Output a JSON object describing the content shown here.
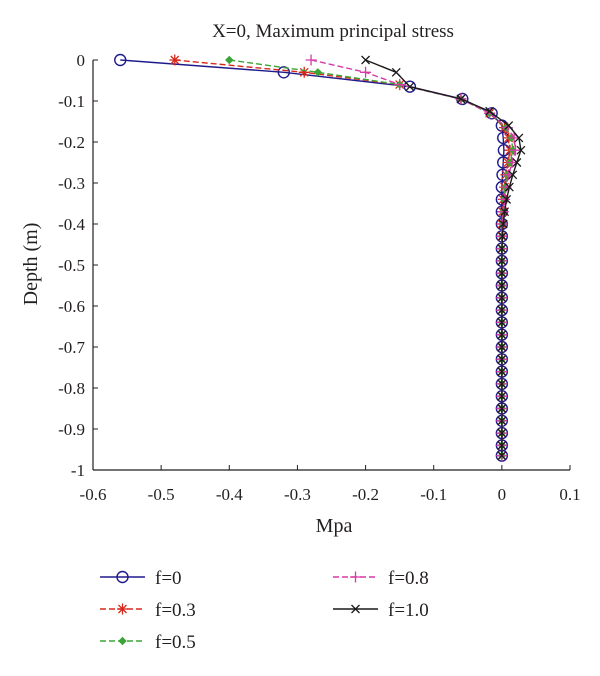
{
  "chart_data": {
    "type": "line",
    "title": "X=0, Maximum principal stress",
    "xlabel": "Mpa",
    "ylabel": "Depth (m)",
    "xlim": [
      -0.6,
      0.1
    ],
    "ylim": [
      -1,
      0
    ],
    "x_ticks": [
      "-0.6",
      "-0.5",
      "-0.4",
      "-0.3",
      "-0.2",
      "-0.1",
      "0",
      "0.1"
    ],
    "y_ticks": [
      "0",
      "-0.1",
      "-0.2",
      "-0.3",
      "-0.4",
      "-0.5",
      "-0.6",
      "-0.7",
      "-0.8",
      "-0.9",
      "-1"
    ],
    "grid": false,
    "legend_position": "bottom",
    "series": [
      {
        "name": "f=0",
        "color": "#1f1a8c",
        "dash": "solid",
        "marker": "circle",
        "points": [
          [
            -0.56,
            0.0
          ],
          [
            -0.32,
            -0.03
          ],
          [
            -0.135,
            -0.065
          ],
          [
            -0.058,
            -0.095
          ],
          [
            -0.015,
            -0.13
          ],
          [
            0.0,
            -0.16
          ],
          [
            0.002,
            -0.19
          ],
          [
            0.003,
            -0.22
          ],
          [
            0.002,
            -0.25
          ],
          [
            0.001,
            -0.28
          ],
          [
            0.0,
            -0.31
          ],
          [
            0.0,
            -0.34
          ],
          [
            0.0,
            -0.37
          ],
          [
            0.0,
            -0.4
          ],
          [
            0.0,
            -0.43
          ],
          [
            0.0,
            -0.46
          ],
          [
            0.0,
            -0.49
          ],
          [
            0.0,
            -0.52
          ],
          [
            0.0,
            -0.55
          ],
          [
            0.0,
            -0.58
          ],
          [
            0.0,
            -0.61
          ],
          [
            0.0,
            -0.64
          ],
          [
            0.0,
            -0.67
          ],
          [
            0.0,
            -0.7
          ],
          [
            0.0,
            -0.73
          ],
          [
            0.0,
            -0.76
          ],
          [
            0.0,
            -0.79
          ],
          [
            0.0,
            -0.82
          ],
          [
            0.0,
            -0.85
          ],
          [
            0.0,
            -0.88
          ],
          [
            0.0,
            -0.91
          ],
          [
            0.0,
            -0.94
          ],
          [
            0.0,
            -0.965
          ]
        ]
      },
      {
        "name": "f=0.3",
        "color": "#d8281c",
        "dash": "dashed",
        "marker": "asterisk",
        "points": [
          [
            -0.48,
            0.0
          ],
          [
            -0.29,
            -0.03
          ],
          [
            -0.15,
            -0.06
          ],
          [
            -0.06,
            -0.095
          ],
          [
            -0.018,
            -0.13
          ],
          [
            0.004,
            -0.165
          ],
          [
            0.01,
            -0.19
          ],
          [
            0.012,
            -0.22
          ],
          [
            0.009,
            -0.25
          ],
          [
            0.006,
            -0.28
          ],
          [
            0.004,
            -0.31
          ],
          [
            0.002,
            -0.34
          ],
          [
            0.001,
            -0.37
          ],
          [
            0.0,
            -0.4
          ],
          [
            0.0,
            -0.43
          ],
          [
            0.0,
            -0.46
          ],
          [
            0.0,
            -0.49
          ],
          [
            0.0,
            -0.52
          ],
          [
            0.0,
            -0.55
          ],
          [
            0.0,
            -0.58
          ],
          [
            0.0,
            -0.61
          ],
          [
            0.0,
            -0.64
          ],
          [
            0.0,
            -0.67
          ],
          [
            0.0,
            -0.7
          ],
          [
            0.0,
            -0.73
          ],
          [
            0.0,
            -0.76
          ],
          [
            0.0,
            -0.79
          ],
          [
            0.0,
            -0.82
          ],
          [
            0.0,
            -0.85
          ],
          [
            0.0,
            -0.88
          ],
          [
            0.0,
            -0.91
          ],
          [
            0.0,
            -0.94
          ],
          [
            0.0,
            -0.965
          ]
        ]
      },
      {
        "name": "f=0.5",
        "color": "#3aa535",
        "dash": "dashed",
        "marker": "diamond",
        "points": [
          [
            -0.4,
            0.0
          ],
          [
            -0.27,
            -0.03
          ],
          [
            -0.15,
            -0.06
          ],
          [
            -0.06,
            -0.095
          ],
          [
            -0.018,
            -0.13
          ],
          [
            0.006,
            -0.165
          ],
          [
            0.014,
            -0.19
          ],
          [
            0.016,
            -0.22
          ],
          [
            0.012,
            -0.25
          ],
          [
            0.008,
            -0.28
          ],
          [
            0.005,
            -0.31
          ],
          [
            0.003,
            -0.34
          ],
          [
            0.002,
            -0.37
          ],
          [
            0.001,
            -0.4
          ],
          [
            0.0,
            -0.43
          ],
          [
            0.0,
            -0.46
          ],
          [
            0.0,
            -0.49
          ],
          [
            0.0,
            -0.52
          ],
          [
            0.0,
            -0.55
          ],
          [
            0.0,
            -0.58
          ],
          [
            0.0,
            -0.61
          ],
          [
            0.0,
            -0.64
          ],
          [
            0.0,
            -0.67
          ],
          [
            0.0,
            -0.7
          ],
          [
            0.0,
            -0.73
          ],
          [
            0.0,
            -0.76
          ],
          [
            0.0,
            -0.79
          ],
          [
            0.0,
            -0.82
          ],
          [
            0.0,
            -0.85
          ],
          [
            0.0,
            -0.88
          ],
          [
            0.0,
            -0.91
          ],
          [
            0.0,
            -0.94
          ],
          [
            0.0,
            -0.965
          ]
        ]
      },
      {
        "name": "f=0.8",
        "color": "#d63aa6",
        "dash": "dashed",
        "marker": "plus",
        "points": [
          [
            -0.28,
            0.0
          ],
          [
            -0.2,
            -0.03
          ],
          [
            -0.15,
            -0.06
          ],
          [
            -0.06,
            -0.095
          ],
          [
            -0.018,
            -0.13
          ],
          [
            0.008,
            -0.165
          ],
          [
            0.018,
            -0.19
          ],
          [
            0.02,
            -0.22
          ],
          [
            0.015,
            -0.25
          ],
          [
            0.01,
            -0.28
          ],
          [
            0.006,
            -0.31
          ],
          [
            0.004,
            -0.34
          ],
          [
            0.002,
            -0.37
          ],
          [
            0.001,
            -0.4
          ],
          [
            0.0,
            -0.43
          ],
          [
            0.0,
            -0.46
          ],
          [
            0.0,
            -0.49
          ],
          [
            0.0,
            -0.52
          ],
          [
            0.0,
            -0.55
          ],
          [
            0.0,
            -0.58
          ],
          [
            0.0,
            -0.61
          ],
          [
            0.0,
            -0.64
          ],
          [
            0.0,
            -0.67
          ],
          [
            0.0,
            -0.7
          ],
          [
            0.0,
            -0.73
          ],
          [
            0.0,
            -0.76
          ],
          [
            0.0,
            -0.79
          ],
          [
            0.0,
            -0.82
          ],
          [
            0.0,
            -0.85
          ],
          [
            0.0,
            -0.88
          ],
          [
            0.0,
            -0.91
          ],
          [
            0.0,
            -0.94
          ],
          [
            0.0,
            -0.965
          ]
        ]
      },
      {
        "name": "f=1.0",
        "color": "#1a1a1a",
        "dash": "solid",
        "marker": "x",
        "points": [
          [
            -0.2,
            0.0
          ],
          [
            -0.155,
            -0.03
          ],
          [
            -0.135,
            -0.065
          ],
          [
            -0.06,
            -0.095
          ],
          [
            -0.018,
            -0.125
          ],
          [
            0.01,
            -0.16
          ],
          [
            0.025,
            -0.19
          ],
          [
            0.028,
            -0.22
          ],
          [
            0.022,
            -0.25
          ],
          [
            0.016,
            -0.28
          ],
          [
            0.011,
            -0.31
          ],
          [
            0.007,
            -0.34
          ],
          [
            0.004,
            -0.37
          ],
          [
            0.002,
            -0.4
          ],
          [
            0.001,
            -0.43
          ],
          [
            0.0,
            -0.46
          ],
          [
            0.0,
            -0.49
          ],
          [
            0.0,
            -0.52
          ],
          [
            0.0,
            -0.55
          ],
          [
            0.0,
            -0.58
          ],
          [
            0.0,
            -0.61
          ],
          [
            0.0,
            -0.64
          ],
          [
            0.0,
            -0.67
          ],
          [
            0.0,
            -0.7
          ],
          [
            0.0,
            -0.73
          ],
          [
            0.0,
            -0.76
          ],
          [
            0.0,
            -0.79
          ],
          [
            0.0,
            -0.82
          ],
          [
            0.0,
            -0.85
          ],
          [
            0.0,
            -0.88
          ],
          [
            0.0,
            -0.91
          ],
          [
            0.0,
            -0.94
          ],
          [
            0.0,
            -0.965
          ]
        ]
      }
    ]
  }
}
